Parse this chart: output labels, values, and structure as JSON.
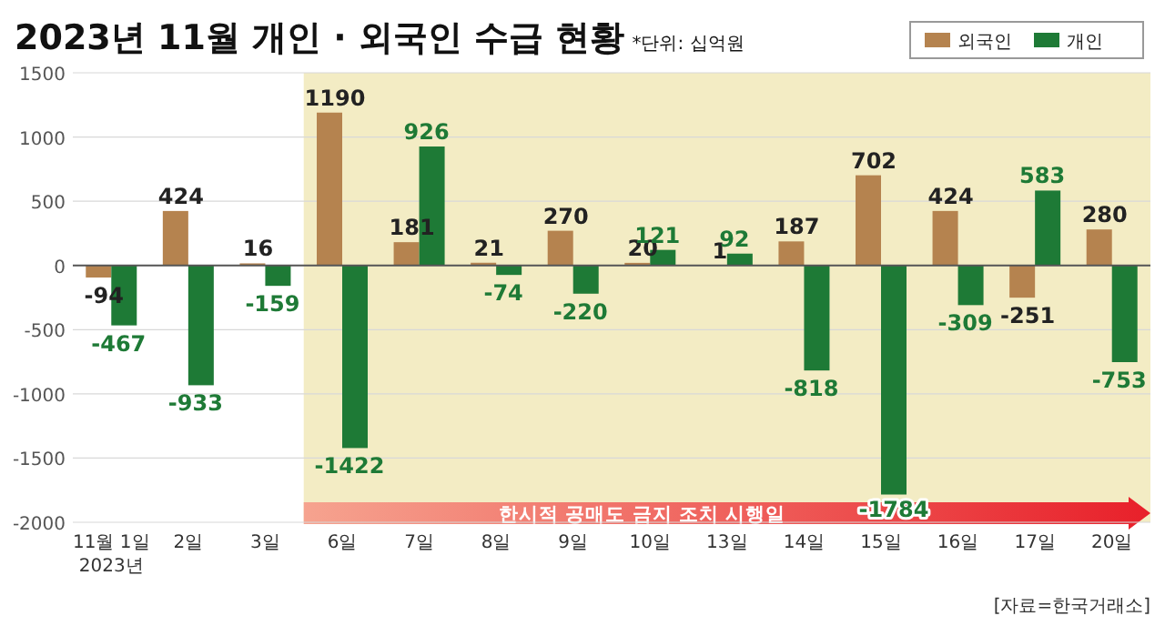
{
  "chart_data": {
    "type": "bar",
    "title": "2023년 11월 개인 · 외국인 수급 현황",
    "subtitle": "*단위: 십억원",
    "categories": [
      "11월 1일\n2023년",
      "2일",
      "3일",
      "6일",
      "7일",
      "8일",
      "9일",
      "10일",
      "13일",
      "14일",
      "15일",
      "16일",
      "17일",
      "20일"
    ],
    "series": [
      {
        "name": "외국인",
        "color": "#b5834f",
        "values": [
          -94,
          424,
          16,
          1190,
          181,
          21,
          270,
          20,
          1,
          187,
          702,
          424,
          -251,
          280
        ]
      },
      {
        "name": "개인",
        "color": "#1e7a36",
        "values": [
          -467,
          -933,
          -159,
          -1422,
          926,
          -74,
          -220,
          121,
          92,
          -818,
          -1784,
          -309,
          583,
          -753
        ]
      }
    ],
    "ylim": [
      -2000,
      1500
    ],
    "yticks": [
      1500,
      1000,
      500,
      0,
      -500,
      -1000,
      -1500,
      -2000
    ],
    "data_labels": true,
    "legend": "top right",
    "grid": "y",
    "bands": [
      {
        "axis": "x",
        "from": "6일",
        "to": "20일",
        "label": "한시적 공매도 금지 조치 시행일",
        "color": "#f3ecc4"
      }
    ],
    "annotations": [
      "[자료=한국거래소]"
    ]
  }
}
